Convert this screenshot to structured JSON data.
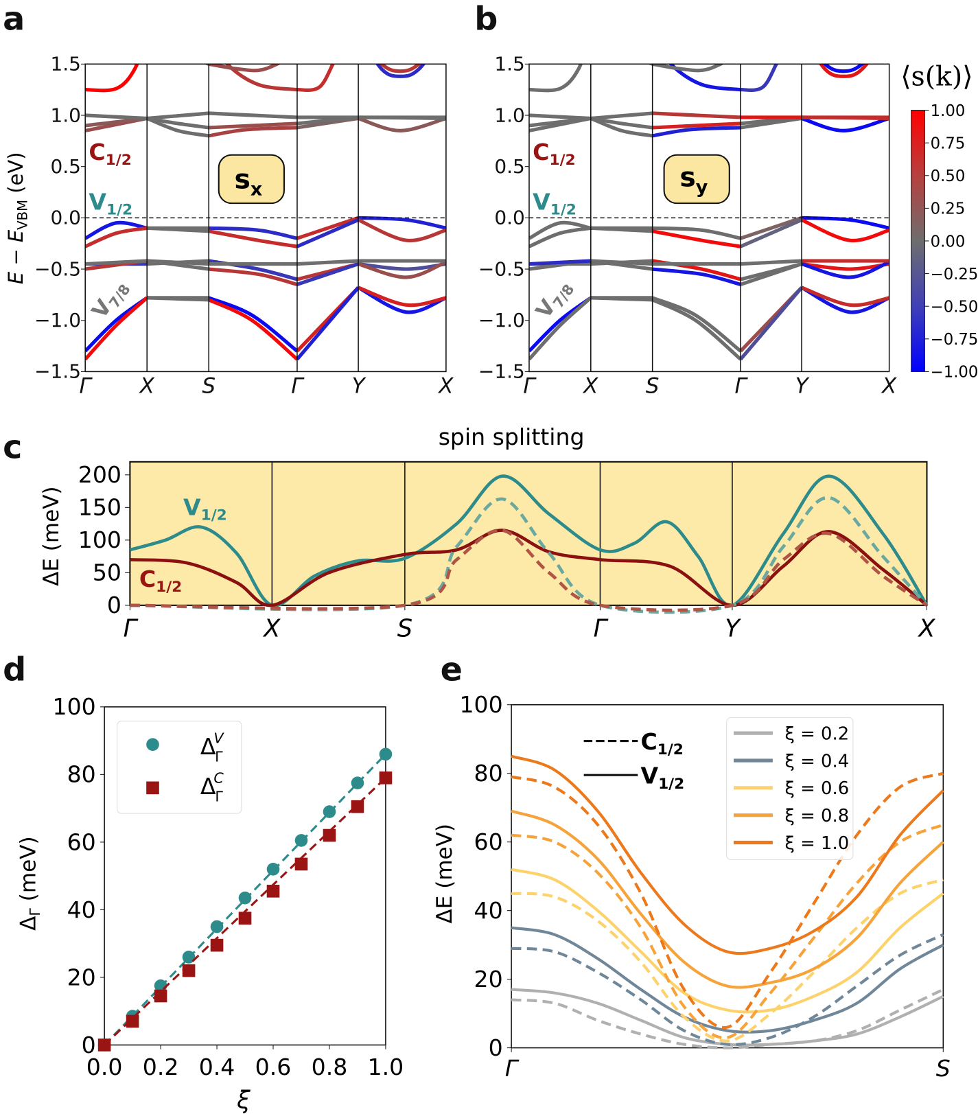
{
  "panel_labels": {
    "a": "a",
    "b": "b",
    "c": "c",
    "d": "d",
    "e": "e"
  },
  "colors": {
    "teal": "#2e8b8b",
    "darkred": "#9b1414",
    "box": "#fbe7a1",
    "panel_c_bg": "#fdeaa8",
    "gray_band": "#6e6e6e"
  },
  "kpath": {
    "labels": [
      "Γ",
      "X",
      "S",
      "Γ",
      "Y",
      "X"
    ],
    "positions_ab": [
      0,
      1,
      2,
      3.43,
      4.42,
      5.84
    ]
  },
  "panel_a": {
    "ylabel": "E − E",
    "ylabel_sub": "VBM",
    "ylabel_unit": " (eV)",
    "box": "s",
    "box_sub": "x",
    "labels": {
      "c12": "C",
      "c12_sub": "1/2",
      "v12": "V",
      "v12_sub": "1/2",
      "v78": "V",
      "v78_sub": "7/8"
    },
    "yticks": [
      "1.5",
      "1.0",
      "0.5",
      "0.0",
      "−0.5",
      "−1.0",
      "−1.5"
    ],
    "ylim": [
      -1.5,
      1.5
    ]
  },
  "panel_b": {
    "box": "s",
    "box_sub": "y",
    "labels": {
      "c12": "C",
      "c12_sub": "1/2",
      "v12": "V",
      "v12_sub": "1/2",
      "v78": "V",
      "v78_sub": "7/8"
    },
    "yticks": [
      "1.5",
      "1.0",
      "0.5",
      "0.0",
      "−0.5",
      "−1.0",
      "−1.5"
    ]
  },
  "colorbar": {
    "title": "⟨s(k)⟩",
    "ticks": [
      "1.00",
      "0.75",
      "0.50",
      "0.25",
      "0.00",
      "−0.25",
      "−0.50",
      "−0.75",
      "−1.00"
    ],
    "range": [
      -1,
      1
    ]
  },
  "bands": [
    {
      "name": "c-top",
      "pts": [
        [
          0,
          1.25
        ],
        [
          0.5,
          1.26
        ],
        [
          0.8,
          1.45
        ],
        [
          1,
          1.8
        ],
        [
          2,
          1.8
        ],
        [
          2.3,
          1.5
        ],
        [
          2.8,
          1.3
        ],
        [
          3.43,
          1.25
        ],
        [
          3.8,
          1.28
        ],
        [
          4.1,
          1.6
        ],
        [
          4.42,
          1.8
        ],
        [
          4.8,
          1.45
        ],
        [
          5.1,
          1.38
        ],
        [
          5.4,
          1.45
        ],
        [
          5.84,
          1.8
        ]
      ],
      "sx": [
        1,
        0,
        0.5,
        0.6,
        -0.6
      ],
      "sy": [
        0,
        0,
        -0.8,
        -0.5,
        0.8
      ]
    },
    {
      "name": "c-top2",
      "pts": [
        [
          0,
          1.8
        ],
        [
          1,
          1.8
        ],
        [
          1.6,
          1.6
        ],
        [
          2,
          1.5
        ],
        [
          2.5,
          1.45
        ],
        [
          2.9,
          1.45
        ],
        [
          3.43,
          1.6
        ],
        [
          4.42,
          1.8
        ],
        [
          4.8,
          1.5
        ],
        [
          5.1,
          1.43
        ],
        [
          5.4,
          1.5
        ],
        [
          5.84,
          1.8
        ]
      ],
      "sx": [
        0,
        0,
        0.3,
        0,
        0.5
      ],
      "sy": [
        0,
        0,
        0,
        0,
        -0.9
      ]
    },
    {
      "name": "c1",
      "pts": [
        [
          0,
          0.85
        ],
        [
          1,
          0.97
        ],
        [
          1.5,
          0.85
        ],
        [
          2,
          0.8
        ],
        [
          2.6,
          0.86
        ],
        [
          3.43,
          0.88
        ],
        [
          4.42,
          0.97
        ],
        [
          5.1,
          0.85
        ],
        [
          5.84,
          0.97
        ]
      ],
      "sx": [
        0.3,
        0,
        0.4,
        0.1,
        0.2
      ],
      "sy": [
        0,
        0,
        -0.7,
        0,
        -0.9
      ]
    },
    {
      "name": "c2",
      "pts": [
        [
          0,
          0.9
        ],
        [
          1,
          0.97
        ],
        [
          1.5,
          0.92
        ],
        [
          2,
          0.88
        ],
        [
          3.43,
          0.92
        ],
        [
          4.42,
          0.98
        ],
        [
          5.84,
          0.97
        ]
      ],
      "sx": [
        0.2,
        0,
        0.3,
        0,
        0
      ],
      "sy": [
        0,
        0,
        0.7,
        0,
        0.6
      ]
    },
    {
      "name": "c3",
      "pts": [
        [
          0,
          1.0
        ],
        [
          1,
          0.97
        ],
        [
          2,
          1.02
        ],
        [
          3.43,
          0.98
        ],
        [
          4.42,
          0.98
        ],
        [
          5.84,
          0.98
        ]
      ],
      "sx": [
        0,
        0,
        0,
        0,
        0
      ],
      "sy": [
        0,
        0,
        0.5,
        0.8,
        0.6
      ]
    },
    {
      "name": "v1",
      "pts": [
        [
          0,
          -0.2
        ],
        [
          0.5,
          -0.05
        ],
        [
          1,
          -0.1
        ],
        [
          2,
          -0.1
        ],
        [
          2.8,
          -0.12
        ],
        [
          3.43,
          -0.2
        ],
        [
          4.42,
          0
        ],
        [
          5.2,
          -0.02
        ],
        [
          5.84,
          -0.1
        ]
      ],
      "sx": [
        -0.8,
        0,
        -0.6,
        0.6,
        -0.7
      ],
      "sy": [
        0,
        0,
        0,
        0.1,
        -0.9
      ]
    },
    {
      "name": "v2",
      "pts": [
        [
          0,
          -0.28
        ],
        [
          0.5,
          -0.15
        ],
        [
          1,
          -0.1
        ],
        [
          2,
          -0.13
        ],
        [
          2.8,
          -0.22
        ],
        [
          3.43,
          -0.28
        ],
        [
          4.42,
          -0.02
        ],
        [
          5.2,
          -0.22
        ],
        [
          5.84,
          -0.12
        ]
      ],
      "sx": [
        0.6,
        0,
        0.6,
        -0.6,
        0.5
      ],
      "sy": [
        0,
        0,
        0.9,
        -0.1,
        0.9
      ]
    },
    {
      "name": "v3",
      "pts": [
        [
          0,
          -0.45
        ],
        [
          1,
          -0.45
        ],
        [
          2,
          -0.42
        ],
        [
          2.8,
          -0.5
        ],
        [
          3.43,
          -0.6
        ],
        [
          4.42,
          -0.45
        ],
        [
          5.2,
          -0.5
        ],
        [
          5.84,
          -0.45
        ]
      ],
      "sx": [
        -0.5,
        0,
        -0.5,
        0.5,
        -0.3
      ],
      "sy": [
        0,
        0,
        0.8,
        0,
        0.8
      ]
    },
    {
      "name": "v4",
      "pts": [
        [
          0,
          -0.5
        ],
        [
          1,
          -0.42
        ],
        [
          2,
          -0.5
        ],
        [
          2.8,
          -0.55
        ],
        [
          3.43,
          -0.65
        ],
        [
          4.42,
          -0.45
        ],
        [
          5.2,
          -0.58
        ],
        [
          5.84,
          -0.43
        ]
      ],
      "sx": [
        0.5,
        0,
        0.5,
        -0.5,
        0.3
      ],
      "sy": [
        0,
        0,
        -0.8,
        0,
        -0.8
      ]
    },
    {
      "name": "v5",
      "pts": [
        [
          0,
          -0.45
        ],
        [
          1,
          -0.42
        ],
        [
          2,
          -0.45
        ],
        [
          3.43,
          -0.45
        ],
        [
          4.42,
          -0.42
        ],
        [
          5.84,
          -0.42
        ]
      ],
      "sx": [
        0,
        0,
        0,
        0,
        0
      ],
      "sy": [
        -0.6,
        0,
        0,
        0,
        0.6
      ]
    },
    {
      "name": "v7",
      "pts": [
        [
          0,
          -1.3
        ],
        [
          0.5,
          -1.0
        ],
        [
          1,
          -0.78
        ],
        [
          2,
          -0.78
        ],
        [
          2.7,
          -0.95
        ],
        [
          3.43,
          -1.3
        ],
        [
          4.42,
          -0.68
        ],
        [
          5.2,
          -0.92
        ],
        [
          5.84,
          -0.78
        ]
      ],
      "sx": [
        -0.9,
        0,
        -0.9,
        0.7,
        -0.8
      ],
      "sy": [
        -0.9,
        0,
        0,
        0.3,
        -0.8
      ]
    },
    {
      "name": "v8",
      "pts": [
        [
          0,
          -1.38
        ],
        [
          0.5,
          -1.05
        ],
        [
          1,
          -0.78
        ],
        [
          2,
          -0.8
        ],
        [
          2.7,
          -1.0
        ],
        [
          3.43,
          -1.38
        ],
        [
          4.42,
          -0.68
        ],
        [
          5.2,
          -0.85
        ],
        [
          5.84,
          -0.78
        ]
      ],
      "sx": [
        0.9,
        0,
        0.9,
        -0.7,
        0.7
      ],
      "sy": [
        0,
        0,
        0,
        -0.3,
        0.6
      ]
    }
  ],
  "chart_data": [
    {
      "panel": "c",
      "type": "line",
      "title": "spin splitting",
      "ylabel": "ΔE (meV)",
      "ylim": [
        0,
        220
      ],
      "yticks": [
        "200",
        "150",
        "100",
        "50",
        "0"
      ],
      "ytick_values": [
        200,
        150,
        100,
        50,
        0
      ],
      "xticks": [
        "Γ",
        "X",
        "S",
        "Γ",
        "Y",
        "X"
      ],
      "xtick_positions": [
        0,
        1,
        1.935,
        3.31,
        4.24,
        5.61
      ],
      "labels": {
        "v": "V",
        "v_sub": "1/2",
        "c": "C",
        "c_sub": "1/2"
      },
      "series": [
        {
          "name": "V1/2",
          "style": "solid",
          "color": "#2e8b8b",
          "pts": [
            [
              0,
              85
            ],
            [
              0.25,
              100
            ],
            [
              0.5,
              120
            ],
            [
              0.75,
              80
            ],
            [
              1,
              0
            ],
            [
              1.3,
              45
            ],
            [
              1.6,
              68
            ],
            [
              1.935,
              72
            ],
            [
              2.3,
              125
            ],
            [
              2.62,
              198
            ],
            [
              2.95,
              140
            ],
            [
              3.31,
              85
            ],
            [
              3.55,
              95
            ],
            [
              3.78,
              128
            ],
            [
              4.0,
              75
            ],
            [
              4.24,
              0
            ],
            [
              4.6,
              110
            ],
            [
              4.92,
              198
            ],
            [
              5.3,
              110
            ],
            [
              5.61,
              0
            ]
          ]
        },
        {
          "name": "C1/2",
          "style": "solid",
          "color": "#8b1010",
          "pts": [
            [
              0,
              70
            ],
            [
              0.4,
              65
            ],
            [
              0.75,
              35
            ],
            [
              1,
              0
            ],
            [
              1.4,
              50
            ],
            [
              1.935,
              78
            ],
            [
              2.3,
              85
            ],
            [
              2.62,
              115
            ],
            [
              2.95,
              82
            ],
            [
              3.31,
              70
            ],
            [
              3.8,
              60
            ],
            [
              4.24,
              0
            ],
            [
              4.6,
              60
            ],
            [
              4.92,
              113
            ],
            [
              5.3,
              55
            ],
            [
              5.61,
              0
            ]
          ]
        },
        {
          "style": "dashed",
          "color": "#6aa8a0",
          "pts": [
            [
              0,
              0
            ],
            [
              1.935,
              0
            ],
            [
              2.3,
              90
            ],
            [
              2.62,
              163
            ],
            [
              2.95,
              80
            ],
            [
              3.31,
              0
            ],
            [
              4.24,
              0
            ],
            [
              4.6,
              90
            ],
            [
              4.92,
              165
            ],
            [
              5.3,
              75
            ],
            [
              5.61,
              0
            ]
          ]
        },
        {
          "style": "dashed",
          "color": "#b05545",
          "pts": [
            [
              0,
              0
            ],
            [
              1.935,
              0
            ],
            [
              2.3,
              70
            ],
            [
              2.62,
              115
            ],
            [
              2.95,
              50
            ],
            [
              3.31,
              0
            ],
            [
              4.24,
              0
            ],
            [
              4.6,
              70
            ],
            [
              4.92,
              110
            ],
            [
              5.3,
              45
            ],
            [
              5.61,
              0
            ]
          ]
        }
      ]
    },
    {
      "panel": "d",
      "type": "scatter",
      "xlabel": "ξ",
      "ylabel": "Δ",
      "ylabel_sub": "Γ",
      "ylabel_unit": " (meV)",
      "xlim": [
        0,
        1
      ],
      "ylim": [
        0,
        100
      ],
      "xticks": [
        "0.0",
        "0.2",
        "0.4",
        "0.6",
        "0.8",
        "1.0"
      ],
      "yticks": [
        "100",
        "80",
        "60",
        "40",
        "20",
        "0"
      ],
      "x": [
        0,
        0.1,
        0.2,
        0.3,
        0.4,
        0.5,
        0.6,
        0.7,
        0.8,
        0.9,
        1.0
      ],
      "series": [
        {
          "name": "Δ",
          "sup": "V",
          "sub": "Γ",
          "marker": "circle",
          "color": "#2e8b8b",
          "values": [
            0,
            8.5,
            17.5,
            26,
            35,
            43.5,
            52,
            60.5,
            69,
            77.5,
            86
          ]
        },
        {
          "name": "Δ",
          "sup": "C",
          "sub": "Γ",
          "marker": "square",
          "color": "#9b1414",
          "values": [
            0,
            7,
            14.5,
            22,
            29.5,
            37.5,
            45.5,
            53.5,
            62,
            70.5,
            79
          ]
        }
      ],
      "legend": "top-left"
    },
    {
      "panel": "e",
      "type": "line",
      "ylabel": "ΔE (meV)",
      "ylim": [
        0,
        100
      ],
      "xticks": [
        "Γ",
        "S"
      ],
      "yticks": [
        "100",
        "80",
        "60",
        "40",
        "20",
        "0"
      ],
      "x": [
        0,
        0.1,
        0.2,
        0.3,
        0.4,
        0.5,
        0.6,
        0.7,
        0.8,
        0.9,
        1.0
      ],
      "style_legend": [
        {
          "style": "dashed",
          "label": "C",
          "sub": "1/2"
        },
        {
          "style": "solid",
          "label": "V",
          "sub": "1/2"
        }
      ],
      "series": [
        {
          "xi": "ξ = 0.2",
          "color": "#b0b0b0",
          "V": [
            17,
            16,
            13,
            8,
            3,
            1,
            1,
            2,
            4,
            9,
            15
          ],
          "C": [
            14,
            13,
            8,
            4,
            1,
            0,
            1,
            2,
            5,
            11,
            17
          ]
        },
        {
          "xi": "ξ = 0.4",
          "color": "#6f8799",
          "V": [
            35,
            33,
            26,
            17,
            9,
            5,
            5,
            8,
            13,
            23,
            30
          ],
          "C": [
            29,
            28,
            22,
            14,
            5,
            1,
            3,
            9,
            18,
            27,
            33
          ]
        },
        {
          "xi": "ξ = 0.6",
          "color": "#fdd26a",
          "V": [
            52,
            49,
            40,
            28,
            16,
            11,
            11,
            15,
            22,
            35,
            45
          ],
          "C": [
            45,
            44,
            37,
            25,
            9,
            2,
            10,
            22,
            35,
            45,
            49
          ]
        },
        {
          "xi": "ξ = 0.8",
          "color": "#f5a33a",
          "V": [
            69,
            65,
            55,
            39,
            25,
            18,
            19,
            23,
            32,
            48,
            60
          ],
          "C": [
            62,
            60,
            51,
            35,
            12,
            3,
            16,
            32,
            48,
            60,
            65
          ]
        },
        {
          "xi": "ξ = 1.0",
          "color": "#ec7a1c",
          "V": [
            85,
            81,
            69,
            51,
            36,
            28,
            29,
            34,
            44,
            62,
            75
          ],
          "C": [
            79,
            76,
            65,
            45,
            17,
            6,
            22,
            42,
            62,
            76,
            80
          ]
        }
      ],
      "legend": "top-right"
    }
  ]
}
